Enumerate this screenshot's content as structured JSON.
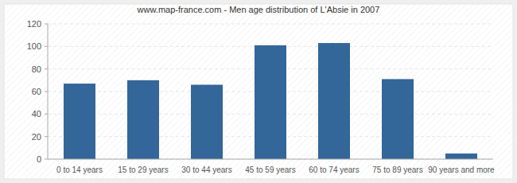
{
  "chart_data": {
    "type": "bar",
    "title": "www.map-france.com - Men age distribution of L'Absie in 2007",
    "categories": [
      "0 to 14 years",
      "15 to 29 years",
      "30 to 44 years",
      "45 to 59 years",
      "60 to 74 years",
      "75 to 89 years",
      "90 years and more"
    ],
    "values": [
      67,
      70,
      66,
      101,
      103,
      71,
      5
    ],
    "color": "#336699",
    "ylim": [
      0,
      120
    ],
    "yticks": [
      0,
      20,
      40,
      60,
      80,
      100,
      120
    ],
    "grid": true
  }
}
